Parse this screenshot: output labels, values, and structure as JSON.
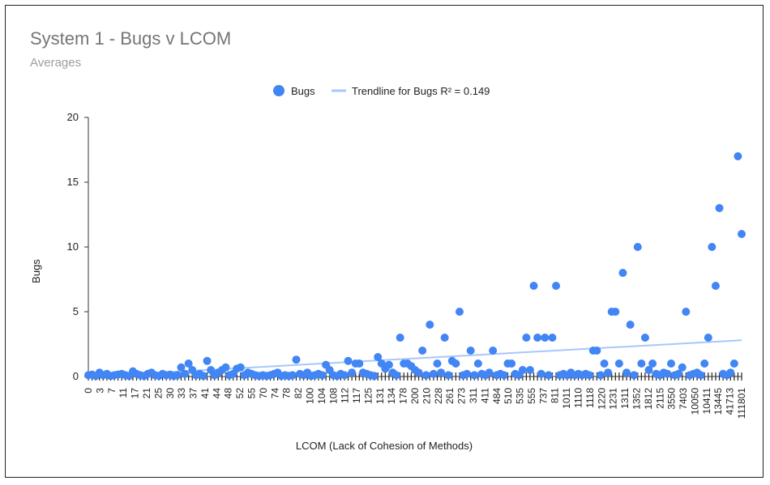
{
  "chart_data": {
    "type": "scatter",
    "title": "System 1 - Bugs v LCOM",
    "subtitle": "Averages",
    "xlabel": "LCOM (Lack of Cohesion of Methods)",
    "ylabel": "Bugs",
    "ylim": [
      0,
      20
    ],
    "yticks": [
      0,
      5,
      10,
      15,
      20
    ],
    "legend_position": "top",
    "grid": false,
    "series": [
      {
        "name": "Bugs",
        "color": "#4285f4",
        "y": [
          0.1,
          0.15,
          0.05,
          0.3,
          0.1,
          0.2,
          0.05,
          0.1,
          0.15,
          0.2,
          0.1,
          0.05,
          0.4,
          0.2,
          0.1,
          0.05,
          0.2,
          0.3,
          0.1,
          0.05,
          0.2,
          0.1,
          0.15,
          0.05,
          0.1,
          0.7,
          0.2,
          1.0,
          0.5,
          0.1,
          0.2,
          0.05,
          1.2,
          0.5,
          0.1,
          0.3,
          0.5,
          0.7,
          0.1,
          0.2,
          0.6,
          0.7,
          0.1,
          0.3,
          0.2,
          0.1,
          0.05,
          0.1,
          0.05,
          0.1,
          0.2,
          0.3,
          0.05,
          0.1,
          0.05,
          0.1,
          1.3,
          0.2,
          0.1,
          0.3,
          0.05,
          0.1,
          0.2,
          0.1,
          0.9,
          0.5,
          0.1,
          0.05,
          0.2,
          0.1,
          1.2,
          0.3,
          1.0,
          1.0,
          0.3,
          0.2,
          0.1,
          0.05,
          1.5,
          1.0,
          0.6,
          0.9,
          0.3,
          0.1,
          3.0,
          1.0,
          1.0,
          0.8,
          0.5,
          0.3,
          2.0,
          0.1,
          4.0,
          0.2,
          1.0,
          0.3,
          3.0,
          0.1,
          1.2,
          1.0,
          5.0,
          0.1,
          0.2,
          2.0,
          0.1,
          1.0,
          0.2,
          0.1,
          0.3,
          2.0,
          0.1,
          0.2,
          0.1,
          1.0,
          1.0,
          0.2,
          0.1,
          0.5,
          3.0,
          0.5,
          7.0,
          3.0,
          0.2,
          3.0,
          0.1,
          3.0,
          7.0,
          0.1,
          0.2,
          0.1,
          0.3,
          0.1,
          0.2,
          0.1,
          0.2,
          0.1,
          2.0,
          2.0,
          0.1,
          1.0,
          0.3,
          5.0,
          5.0,
          1.0,
          8.0,
          0.3,
          4.0,
          0.1,
          10.0,
          1.0,
          3.0,
          0.5,
          1.0,
          0.2,
          0.1,
          0.3,
          0.2,
          1.0,
          0.1,
          0.2,
          0.7,
          5.0,
          0.1,
          0.2,
          0.3,
          0.1,
          1.0,
          3.0,
          10.0,
          7.0,
          13.0,
          0.2,
          0.1,
          0.3,
          1.0,
          17.0,
          11.0
        ]
      },
      {
        "name": "Trendline for Bugs R² = 0.149",
        "color": "#a8c7fa",
        "type": "line",
        "y_start": 0.0,
        "y_end": 2.8
      }
    ],
    "categories": [
      "0",
      "3",
      "7",
      "11",
      "17",
      "21",
      "25",
      "30",
      "33",
      "37",
      "41",
      "44",
      "48",
      "52",
      "55",
      "70",
      "74",
      "78",
      "82",
      "100",
      "104",
      "108",
      "112",
      "117",
      "125",
      "131",
      "134",
      "178",
      "200",
      "210",
      "228",
      "261",
      "273",
      "311",
      "411",
      "484",
      "510",
      "535",
      "555",
      "737",
      "811",
      "1011",
      "1110",
      "1118",
      "1220",
      "1231",
      "1311",
      "1352",
      "1812",
      "2115",
      "3550",
      "7403",
      "10050",
      "10411",
      "13445",
      "41713",
      "111801"
    ]
  }
}
